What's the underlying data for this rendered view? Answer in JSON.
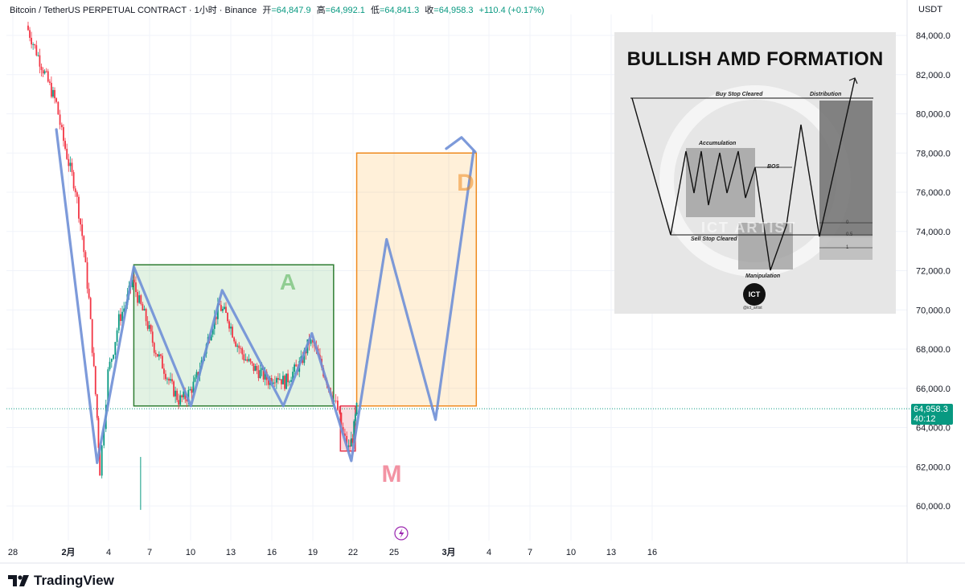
{
  "header": {
    "symbol": "Bitcoin / TetherUS PERPETUAL CONTRACT · 1小时 · Binance",
    "open_label": "开",
    "open": "=64,847.9",
    "high_label": "高",
    "high": "=64,992.1",
    "low_label": "低",
    "low": "=64,841.3",
    "close_label": "收",
    "close": "=64,958.3",
    "change": "+110.4 (+0.17%)"
  },
  "price_axis": {
    "currency": "USDT",
    "ticks": [
      "84,000.0",
      "82,000.0",
      "80,000.0",
      "78,000.0",
      "76,000.0",
      "74,000.0",
      "72,000.0",
      "70,000.0",
      "68,000.0",
      "66,000.0",
      "64,000.0",
      "62,000.0",
      "60,000.0"
    ],
    "current_price": "64,958.3",
    "countdown": "40:12"
  },
  "time_axis": {
    "ticks": [
      "28",
      "2月",
      "4",
      "7",
      "10",
      "13",
      "16",
      "19",
      "22",
      "25",
      "3月",
      "4",
      "7",
      "10",
      "13",
      "16"
    ]
  },
  "annotations": {
    "accumulation_letter": "A",
    "manipulation_letter": "M",
    "distribution_letter": "D"
  },
  "inset": {
    "title": "BULLISH AMD FORMATION",
    "buy_stop": "Buy Stop Cleared",
    "distribution": "Distribution",
    "accumulation": "Accumulation",
    "bos": "BOS",
    "sell_stop": "Sell Stop Cleared",
    "manipulation": "Manipulation",
    "fib_0": "0",
    "fib_05": "0.5",
    "fib_1": "1",
    "watermark": "ICT ARTIST",
    "logo_text": "ICT",
    "handle": "@ict_artist"
  },
  "branding": {
    "logo": "TradingView"
  },
  "colors": {
    "up": "#089981",
    "down": "#f23645",
    "path": "#6f8fd6",
    "accumulation_box": "#2e7d32",
    "distribution_box": "#ef8a1e",
    "manipulation_box": "#e53950"
  },
  "chart_data": {
    "type": "candlestick",
    "title": "Bitcoin / TetherUS PERPETUAL CONTRACT · 1小时 · Binance",
    "ylim": [
      59000,
      85500
    ],
    "x_ticks": [
      "28",
      "2月",
      "4",
      "7",
      "10",
      "13",
      "16",
      "19",
      "22",
      "25",
      "3月",
      "4",
      "7",
      "10",
      "13",
      "16"
    ],
    "price_path_days": [
      [
        1.0,
        84500
      ],
      [
        3.2,
        80500
      ],
      [
        3.6,
        79000
      ],
      [
        4.1,
        77500
      ],
      [
        4.6,
        76200
      ],
      [
        5.1,
        73800
      ],
      [
        5.6,
        70500
      ],
      [
        6.2,
        64500
      ],
      [
        6.4,
        61800
      ],
      [
        6.7,
        64200
      ],
      [
        7.0,
        66800
      ],
      [
        7.4,
        68000
      ],
      [
        7.8,
        69500
      ],
      [
        8.3,
        70300
      ],
      [
        8.8,
        71500
      ],
      [
        9.3,
        70400
      ],
      [
        9.8,
        69500
      ],
      [
        10.4,
        68100
      ],
      [
        11.0,
        67200
      ],
      [
        11.6,
        66200
      ],
      [
        12.2,
        65400
      ],
      [
        12.8,
        65600
      ],
      [
        13.4,
        66300
      ],
      [
        14.0,
        67600
      ],
      [
        14.6,
        69100
      ],
      [
        15.2,
        70200
      ],
      [
        15.8,
        69600
      ],
      [
        16.4,
        68400
      ],
      [
        17.0,
        67600
      ],
      [
        17.6,
        67100
      ],
      [
        18.2,
        66800
      ],
      [
        18.8,
        66400
      ],
      [
        19.4,
        66700
      ],
      [
        20.0,
        66300
      ],
      [
        20.6,
        66800
      ],
      [
        21.2,
        67300
      ],
      [
        21.8,
        68400
      ],
      [
        22.2,
        68100
      ],
      [
        22.6,
        67300
      ],
      [
        23.1,
        66400
      ],
      [
        23.5,
        65600
      ],
      [
        23.9,
        64900
      ],
      [
        24.3,
        63600
      ],
      [
        24.7,
        62900
      ],
      [
        25.0,
        63500
      ],
      [
        25.3,
        64958
      ]
    ],
    "projection_path": [
      [
        3.2,
        79200
      ],
      [
        6.2,
        62200
      ],
      [
        8.9,
        72200
      ],
      [
        13.1,
        65100
      ],
      [
        15.4,
        71000
      ],
      [
        19.9,
        65100
      ],
      [
        22.0,
        68800
      ],
      [
        24.9,
        62300
      ],
      [
        27.5,
        73600
      ],
      [
        31.1,
        64400
      ],
      [
        33.9,
        78100
      ]
    ],
    "accumulation_range": {
      "start_day": 8.9,
      "end_day": 23.6,
      "high": 72300,
      "low": 65100
    },
    "manipulation_range": {
      "start_day": 24.1,
      "end_day": 25.2,
      "high": 65100,
      "low": 62800
    },
    "distribution_range": {
      "start_day": 25.3,
      "end_day": 34.1,
      "high": 78000,
      "low": 65100
    },
    "current_price": 64958.3
  }
}
